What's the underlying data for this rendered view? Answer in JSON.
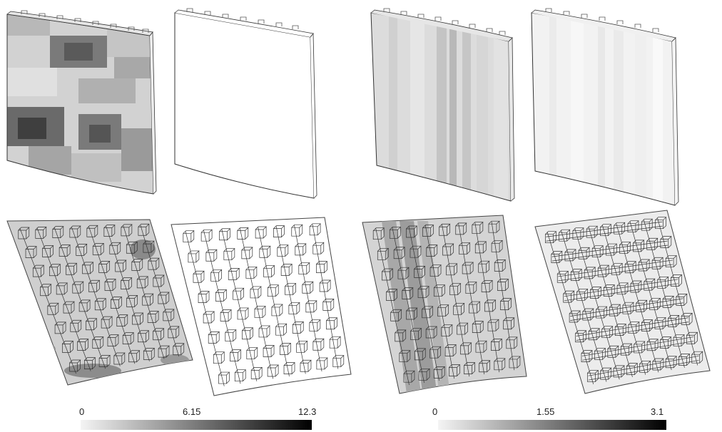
{
  "panels": [
    {
      "id": "top-1",
      "view": "face",
      "shading": "blotchy"
    },
    {
      "id": "top-2",
      "view": "face",
      "shading": "none"
    },
    {
      "id": "top-3",
      "view": "face",
      "shading": "vertical-bands"
    },
    {
      "id": "top-4",
      "view": "face",
      "shading": "faint-vertical-bands"
    },
    {
      "id": "bottom-1",
      "view": "ribbed",
      "shading": "blotchy"
    },
    {
      "id": "bottom-2",
      "view": "ribbed",
      "shading": "none"
    },
    {
      "id": "bottom-3",
      "view": "ribbed",
      "shading": "vertical-bands"
    },
    {
      "id": "bottom-4",
      "view": "ribbed-crossed",
      "shading": "faint"
    }
  ],
  "colorbars": [
    {
      "labels": [
        "0",
        "6.15",
        "12.3"
      ],
      "gradient": [
        "#f4f4f4",
        "#000000"
      ]
    },
    {
      "labels": [
        "0",
        "1.55",
        "3.1"
      ],
      "gradient": [
        "#f4f4f4",
        "#000000"
      ]
    }
  ]
}
